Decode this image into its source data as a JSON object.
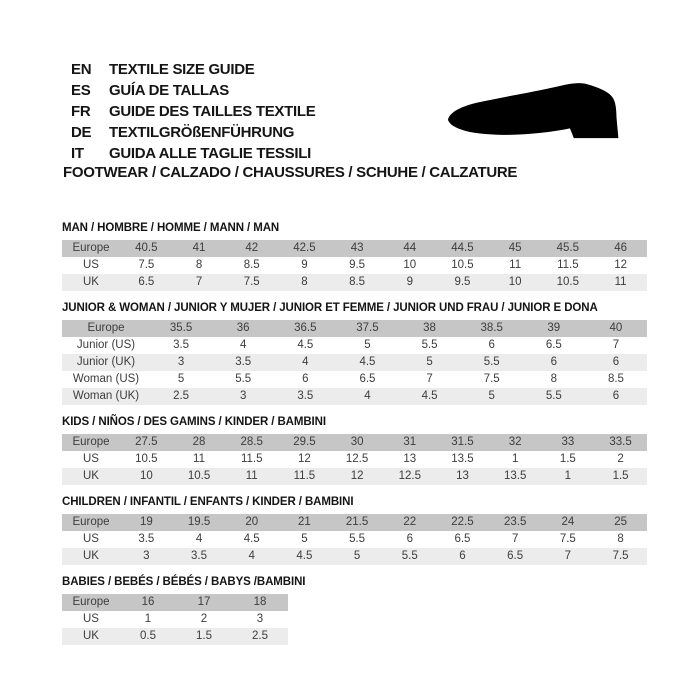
{
  "header": {
    "languages": [
      {
        "code": "EN",
        "label": "TEXTILE SIZE GUIDE"
      },
      {
        "code": "ES",
        "label": "GUÍA DE TALLAS"
      },
      {
        "code": "FR",
        "label": "GUIDE DES TAILLES TEXTILE"
      },
      {
        "code": "DE",
        "label": "TEXTILGRÖßENFÜHRUNG"
      },
      {
        "code": "IT",
        "label": "GUIDA ALLE TAGLIE TESSILI"
      }
    ],
    "category_title": "FOOTWEAR / CALZADO / CHAUSSURES / SCHUHE / CALZATURE",
    "shoe_icon": "dress-shoe-silhouette"
  },
  "colors": {
    "header_row": "#c6c6c6",
    "alt_row": "#ececec",
    "table_text": "#3d3d3d",
    "title_text": "#151515",
    "shoe": "#000000"
  },
  "tables": [
    {
      "title": "MAN / HOMBRE / HOMME / MANN / MAN",
      "rows": [
        {
          "label": "Europe",
          "values": [
            "40.5",
            "41",
            "42",
            "42.5",
            "43",
            "44",
            "44.5",
            "45",
            "45.5",
            "46"
          ]
        },
        {
          "label": "US",
          "values": [
            "7.5",
            "8",
            "8.5",
            "9",
            "9.5",
            "10",
            "10.5",
            "11",
            "11.5",
            "12"
          ]
        },
        {
          "label": "UK",
          "values": [
            "6.5",
            "7",
            "7.5",
            "8",
            "8.5",
            "9",
            "9.5",
            "10",
            "10.5",
            "11"
          ]
        }
      ]
    },
    {
      "title": "JUNIOR & WOMAN / JUNIOR Y MUJER / JUNIOR ET FEMME / JUNIOR UND FRAU / JUNIOR E DONA",
      "rows": [
        {
          "label": "Europe",
          "values": [
            "35.5",
            "36",
            "36.5",
            "37.5",
            "38",
            "38.5",
            "39",
            "40"
          ]
        },
        {
          "label": "Junior (US)",
          "values": [
            "3.5",
            "4",
            "4.5",
            "5",
            "5.5",
            "6",
            "6.5",
            "7"
          ]
        },
        {
          "label": "Junior (UK)",
          "values": [
            "3",
            "3.5",
            "4",
            "4.5",
            "5",
            "5.5",
            "6",
            "6"
          ]
        },
        {
          "label": "Woman (US)",
          "values": [
            "5",
            "5.5",
            "6",
            "6.5",
            "7",
            "7.5",
            "8",
            "8.5"
          ]
        },
        {
          "label": "Woman (UK)",
          "values": [
            "2.5",
            "3",
            "3.5",
            "4",
            "4.5",
            "5",
            "5.5",
            "6"
          ]
        }
      ]
    },
    {
      "title": "KIDS / NIÑOS / DES GAMINS / KINDER / BAMBINI",
      "rows": [
        {
          "label": "Europe",
          "values": [
            "27.5",
            "28",
            "28.5",
            "29.5",
            "30",
            "31",
            "31.5",
            "32",
            "33",
            "33.5"
          ]
        },
        {
          "label": "US",
          "values": [
            "10.5",
            "11",
            "11.5",
            "12",
            "12.5",
            "13",
            "13.5",
            "1",
            "1.5",
            "2"
          ]
        },
        {
          "label": "UK",
          "values": [
            "10",
            "10.5",
            "11",
            "11.5",
            "12",
            "12.5",
            "13",
            "13.5",
            "1",
            "1.5"
          ]
        }
      ]
    },
    {
      "title": "CHILDREN / INFANTIL / ENFANTS / KINDER / BAMBINI",
      "rows": [
        {
          "label": "Europe",
          "values": [
            "19",
            "19.5",
            "20",
            "21",
            "21.5",
            "22",
            "22.5",
            "23.5",
            "24",
            "25"
          ]
        },
        {
          "label": "US",
          "values": [
            "3.5",
            "4",
            "4.5",
            "5",
            "5.5",
            "6",
            "6.5",
            "7",
            "7.5",
            "8"
          ]
        },
        {
          "label": "UK",
          "values": [
            "3",
            "3.5",
            "4",
            "4.5",
            "5",
            "5.5",
            "6",
            "6.5",
            "7",
            "7.5"
          ]
        }
      ]
    },
    {
      "title": "BABIES / BEBÉS / BÉBÉS / BABYS /BAMBINI",
      "rows": [
        {
          "label": "Europe",
          "values": [
            "16",
            "17",
            "18"
          ]
        },
        {
          "label": "US",
          "values": [
            "1",
            "2",
            "3"
          ]
        },
        {
          "label": "UK",
          "values": [
            "0.5",
            "1.5",
            "2.5"
          ]
        }
      ]
    }
  ]
}
